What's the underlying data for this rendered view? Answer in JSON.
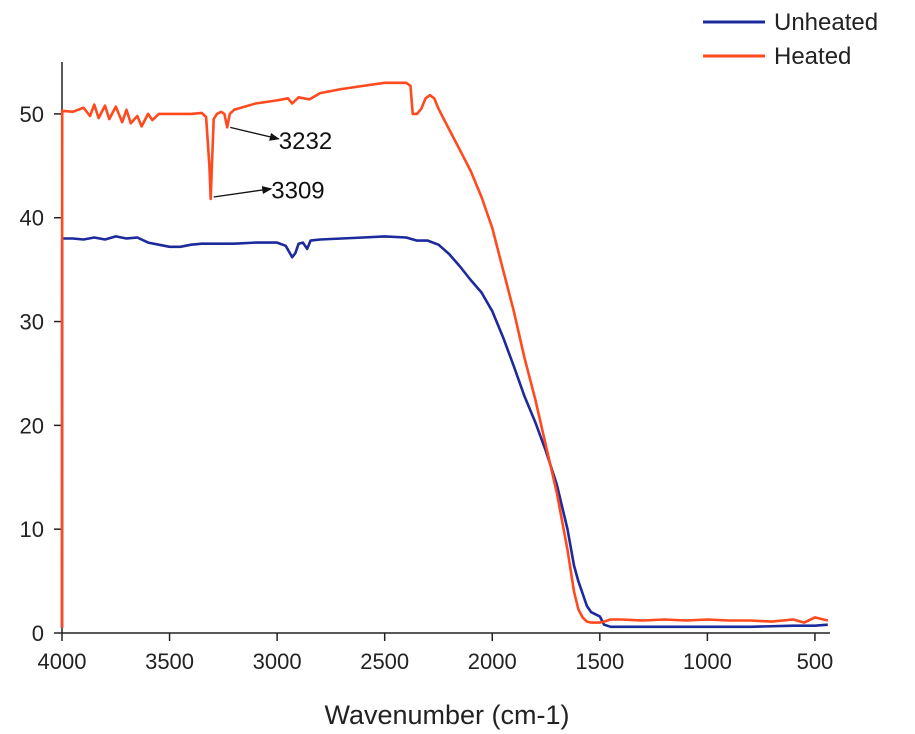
{
  "chart_data": {
    "type": "line",
    "title": "",
    "xlabel": "Wavenumber (cm-1)",
    "ylabel": "",
    "xlim": [
      4000,
      430
    ],
    "ylim": [
      0,
      55
    ],
    "x_reversed": true,
    "grid": false,
    "legend_position": "top-right",
    "x_ticks": [
      4000,
      3500,
      3000,
      2500,
      2000,
      1500,
      1000,
      500
    ],
    "x_tick_labels": [
      "4000",
      "3500",
      "3000",
      "2500",
      "2000",
      "1500",
      "1000",
      "500"
    ],
    "y_ticks": [
      0,
      10,
      20,
      30,
      40,
      50
    ],
    "y_tick_labels": [
      "0",
      "10",
      "20",
      "30",
      "40",
      "50"
    ],
    "series": [
      {
        "name": "Unheated",
        "color": "#1c2a9c",
        "points": [
          [
            4000,
            0.5
          ],
          [
            3999,
            38.0
          ],
          [
            3950,
            38.0
          ],
          [
            3900,
            37.9
          ],
          [
            3850,
            38.1
          ],
          [
            3800,
            37.9
          ],
          [
            3750,
            38.2
          ],
          [
            3700,
            38.0
          ],
          [
            3650,
            38.1
          ],
          [
            3600,
            37.6
          ],
          [
            3550,
            37.4
          ],
          [
            3500,
            37.2
          ],
          [
            3450,
            37.2
          ],
          [
            3400,
            37.4
          ],
          [
            3350,
            37.5
          ],
          [
            3300,
            37.5
          ],
          [
            3200,
            37.5
          ],
          [
            3100,
            37.6
          ],
          [
            3000,
            37.6
          ],
          [
            2960,
            37.3
          ],
          [
            2930,
            36.2
          ],
          [
            2915,
            36.6
          ],
          [
            2900,
            37.5
          ],
          [
            2880,
            37.6
          ],
          [
            2860,
            37.0
          ],
          [
            2845,
            37.8
          ],
          [
            2800,
            37.9
          ],
          [
            2700,
            38.0
          ],
          [
            2600,
            38.1
          ],
          [
            2500,
            38.2
          ],
          [
            2400,
            38.1
          ],
          [
            2350,
            37.8
          ],
          [
            2300,
            37.8
          ],
          [
            2250,
            37.4
          ],
          [
            2200,
            36.5
          ],
          [
            2150,
            35.3
          ],
          [
            2100,
            34.0
          ],
          [
            2050,
            32.8
          ],
          [
            2000,
            31.0
          ],
          [
            1950,
            28.5
          ],
          [
            1900,
            25.7
          ],
          [
            1850,
            22.8
          ],
          [
            1800,
            20.3
          ],
          [
            1750,
            17.5
          ],
          [
            1700,
            14.3
          ],
          [
            1650,
            10.0
          ],
          [
            1620,
            6.5
          ],
          [
            1600,
            5.0
          ],
          [
            1580,
            3.8
          ],
          [
            1560,
            2.6
          ],
          [
            1540,
            2.0
          ],
          [
            1520,
            1.8
          ],
          [
            1500,
            1.6
          ],
          [
            1480,
            0.8
          ],
          [
            1450,
            0.6
          ],
          [
            1400,
            0.6
          ],
          [
            1200,
            0.6
          ],
          [
            1000,
            0.6
          ],
          [
            800,
            0.6
          ],
          [
            600,
            0.7
          ],
          [
            500,
            0.7
          ],
          [
            440,
            0.8
          ]
        ]
      },
      {
        "name": "Heated",
        "color": "#ff4a1f",
        "points": [
          [
            4000,
            0.5
          ],
          [
            3999,
            50.3
          ],
          [
            3950,
            50.2
          ],
          [
            3900,
            50.6
          ],
          [
            3870,
            49.8
          ],
          [
            3850,
            50.9
          ],
          [
            3830,
            49.6
          ],
          [
            3800,
            50.8
          ],
          [
            3780,
            49.5
          ],
          [
            3750,
            50.7
          ],
          [
            3720,
            49.2
          ],
          [
            3700,
            50.4
          ],
          [
            3680,
            49.1
          ],
          [
            3650,
            49.8
          ],
          [
            3630,
            48.8
          ],
          [
            3600,
            50.0
          ],
          [
            3580,
            49.4
          ],
          [
            3550,
            50.0
          ],
          [
            3500,
            50.0
          ],
          [
            3450,
            50.0
          ],
          [
            3400,
            50.0
          ],
          [
            3350,
            50.1
          ],
          [
            3330,
            49.7
          ],
          [
            3315,
            45.0
          ],
          [
            3309,
            41.8
          ],
          [
            3303,
            45.0
          ],
          [
            3295,
            49.5
          ],
          [
            3280,
            50.0
          ],
          [
            3260,
            50.2
          ],
          [
            3245,
            50.0
          ],
          [
            3232,
            48.7
          ],
          [
            3220,
            50.0
          ],
          [
            3200,
            50.4
          ],
          [
            3100,
            51.0
          ],
          [
            3000,
            51.3
          ],
          [
            2950,
            51.5
          ],
          [
            2930,
            51.0
          ],
          [
            2900,
            51.6
          ],
          [
            2850,
            51.4
          ],
          [
            2800,
            52.0
          ],
          [
            2700,
            52.4
          ],
          [
            2600,
            52.7
          ],
          [
            2500,
            53.0
          ],
          [
            2400,
            53.0
          ],
          [
            2380,
            52.7
          ],
          [
            2370,
            50.0
          ],
          [
            2350,
            50.0
          ],
          [
            2330,
            50.5
          ],
          [
            2310,
            51.5
          ],
          [
            2290,
            51.8
          ],
          [
            2270,
            51.5
          ],
          [
            2250,
            50.5
          ],
          [
            2200,
            48.5
          ],
          [
            2150,
            46.5
          ],
          [
            2100,
            44.5
          ],
          [
            2050,
            42.0
          ],
          [
            2000,
            39.0
          ],
          [
            1950,
            35.0
          ],
          [
            1900,
            31.0
          ],
          [
            1850,
            26.5
          ],
          [
            1800,
            22.5
          ],
          [
            1750,
            18.0
          ],
          [
            1700,
            13.5
          ],
          [
            1650,
            8.0
          ],
          [
            1620,
            4.0
          ],
          [
            1600,
            2.3
          ],
          [
            1580,
            1.5
          ],
          [
            1560,
            1.1
          ],
          [
            1540,
            1.0
          ],
          [
            1500,
            1.0
          ],
          [
            1480,
            1.1
          ],
          [
            1450,
            1.3
          ],
          [
            1400,
            1.3
          ],
          [
            1300,
            1.2
          ],
          [
            1200,
            1.3
          ],
          [
            1100,
            1.2
          ],
          [
            1000,
            1.3
          ],
          [
            900,
            1.2
          ],
          [
            800,
            1.2
          ],
          [
            700,
            1.1
          ],
          [
            600,
            1.3
          ],
          [
            550,
            1.0
          ],
          [
            500,
            1.5
          ],
          [
            460,
            1.3
          ],
          [
            440,
            1.2
          ]
        ]
      }
    ],
    "annotations": [
      {
        "text": "3232",
        "point": [
          3232,
          48.7
        ],
        "label_at": [
          2890,
          47.4
        ]
      },
      {
        "text": "3309",
        "point": [
          3309,
          42.0
        ],
        "label_at": [
          2925,
          42.6
        ]
      }
    ]
  }
}
